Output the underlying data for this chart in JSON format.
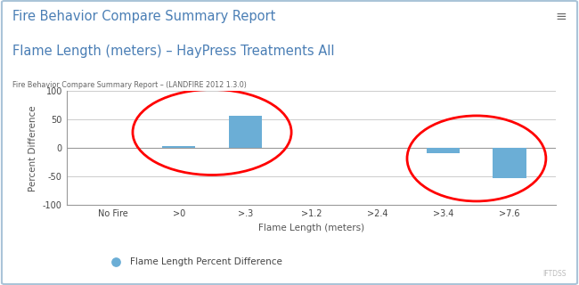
{
  "title_line1": "Fire Behavior Compare Summary Report",
  "title_line2": "Flame Length (meters) – HayPress Treatments All",
  "subtitle": "Fire Behavior Compare Summary Report – (LANDFIRE 2012 1.3.0)",
  "categories": [
    "No Fire",
    ">0",
    ">.3",
    ">1.2",
    ">2.4",
    ">3.4",
    ">7.6"
  ],
  "values": [
    0,
    3,
    57,
    0,
    0,
    -8,
    -52
  ],
  "bar_color": "#6baed6",
  "xlabel": "Flame Length (meters)",
  "ylabel": "Percent Difference",
  "ylim": [
    -100,
    100
  ],
  "yticks": [
    -100,
    -50,
    0,
    50,
    100
  ],
  "legend_label": "Flame Length Percent Difference",
  "legend_marker_color": "#6baed6",
  "background_color": "#ffffff",
  "border_color": "#aac4d8",
  "title_color": "#4a7eb5",
  "subtitle_color": "#666666",
  "axis_color": "#999999",
  "grid_color": "#cccccc",
  "watermark": "IFTDSS",
  "menu_symbol": "≡",
  "bar_width": 0.5
}
